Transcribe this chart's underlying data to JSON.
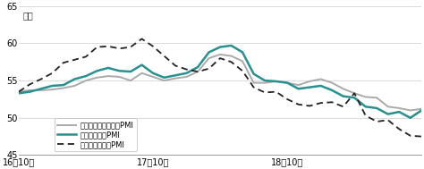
{
  "ylabel": "指数",
  "ylim": [
    45,
    65
  ],
  "yticks": [
    45,
    50,
    55,
    60,
    65
  ],
  "xtick_labels": [
    "16年10月",
    "17年10月",
    "18年10月"
  ],
  "xtick_positions": [
    0,
    12,
    24
  ],
  "background_color": "#ffffff",
  "service_color": "#aaaaaa",
  "composite_color": "#2a8f8f",
  "manufacturing_color": "#222222",
  "service_label": "ユーロ圏サービス業PMI",
  "composite_label": "ユーロ圏総合PMI",
  "manufacturing_label": "ユーロ圏製造業PMI",
  "service": [
    53.5,
    53.7,
    53.7,
    53.8,
    54.0,
    54.3,
    55.0,
    55.4,
    55.6,
    55.5,
    55.0,
    56.0,
    55.5,
    55.0,
    55.3,
    55.5,
    56.2,
    58.0,
    58.5,
    58.3,
    57.6,
    54.7,
    54.7,
    54.9,
    54.7,
    54.4,
    54.9,
    55.2,
    54.7,
    53.9,
    53.3,
    52.8,
    52.7,
    51.5,
    51.3,
    51.0,
    51.2
  ],
  "composite": [
    53.3,
    53.5,
    53.9,
    54.3,
    54.4,
    55.2,
    55.6,
    56.3,
    56.7,
    56.3,
    56.2,
    57.1,
    56.0,
    55.4,
    55.7,
    56.0,
    56.8,
    58.8,
    59.5,
    59.7,
    58.8,
    55.9,
    55.0,
    54.9,
    54.7,
    53.9,
    54.1,
    54.3,
    53.7,
    52.9,
    52.7,
    51.5,
    51.3,
    50.5,
    50.8,
    50.0,
    51.0
  ],
  "manufacturing": [
    53.5,
    54.5,
    55.2,
    56.0,
    57.4,
    57.8,
    58.2,
    59.5,
    59.6,
    59.3,
    59.5,
    60.6,
    59.6,
    58.3,
    57.0,
    56.5,
    56.2,
    56.6,
    58.0,
    57.5,
    56.3,
    54.1,
    53.4,
    53.5,
    52.5,
    51.8,
    51.6,
    52.0,
    52.1,
    51.5,
    53.3,
    50.3,
    49.5,
    49.7,
    48.5,
    47.6,
    47.5
  ],
  "n_points": 37
}
